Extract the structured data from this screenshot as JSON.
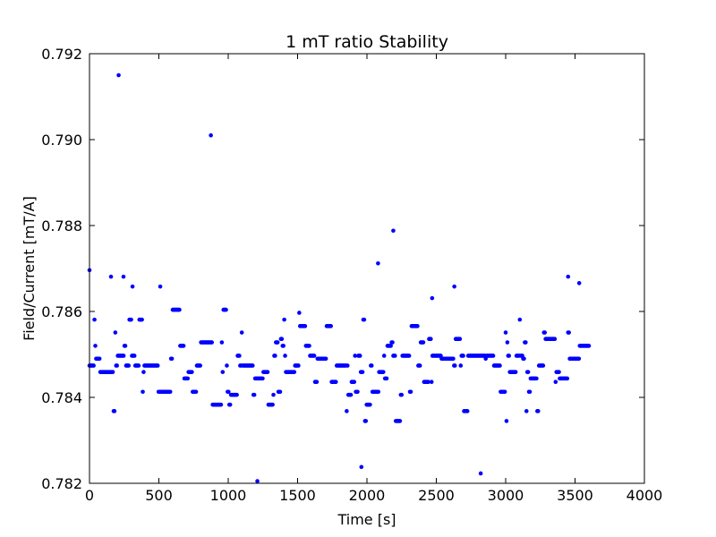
{
  "chart_data": {
    "type": "scatter",
    "title": "1 mT ratio Stability",
    "xlabel": "Time [s]",
    "ylabel": "Field/Current [mT/A]",
    "xlim": [
      0,
      4000
    ],
    "ylim": [
      0.782,
      0.792
    ],
    "xticks": [
      0,
      500,
      1000,
      1500,
      2000,
      2500,
      3000,
      3500,
      4000
    ],
    "xtick_labels": [
      "0",
      "500",
      "1000",
      "1500",
      "2000",
      "2500",
      "3000",
      "3500",
      "4000"
    ],
    "yticks": [
      0.782,
      0.784,
      0.786,
      0.788,
      0.79,
      0.792
    ],
    "ytick_labels": [
      "0.782",
      "0.784",
      "0.786",
      "0.788",
      "0.790",
      "0.792"
    ],
    "grid": false,
    "marker_color": "#0000ff",
    "x_range": [
      0,
      3600
    ],
    "dt": 6,
    "levels": [
      0.78276,
      0.78299,
      0.78329,
      0.78345,
      0.78368,
      0.78383,
      0.78406,
      0.78413,
      0.78436,
      0.78444,
      0.78459,
      0.78474,
      0.7849,
      0.78497,
      0.7852,
      0.78528,
      0.78536,
      0.78551,
      0.78566,
      0.78581,
      0.78597,
      0.78604,
      0.78619,
      0.78635
    ],
    "outliers": [
      {
        "x": 0,
        "y": 0.78696
      },
      {
        "x": 210,
        "y": 0.7915
      },
      {
        "x": 875,
        "y": 0.7901
      },
      {
        "x": 2190,
        "y": 0.78788
      },
      {
        "x": 2080,
        "y": 0.78712
      },
      {
        "x": 155,
        "y": 0.78681
      },
      {
        "x": 245,
        "y": 0.78681
      },
      {
        "x": 310,
        "y": 0.78658
      },
      {
        "x": 510,
        "y": 0.78658
      },
      {
        "x": 2630,
        "y": 0.78658
      },
      {
        "x": 3450,
        "y": 0.78681
      },
      {
        "x": 3530,
        "y": 0.78666
      },
      {
        "x": 1210,
        "y": 0.78205
      },
      {
        "x": 1960,
        "y": 0.78238
      },
      {
        "x": 2820,
        "y": 0.78223
      },
      {
        "x": 2470,
        "y": 0.78631
      }
    ]
  }
}
